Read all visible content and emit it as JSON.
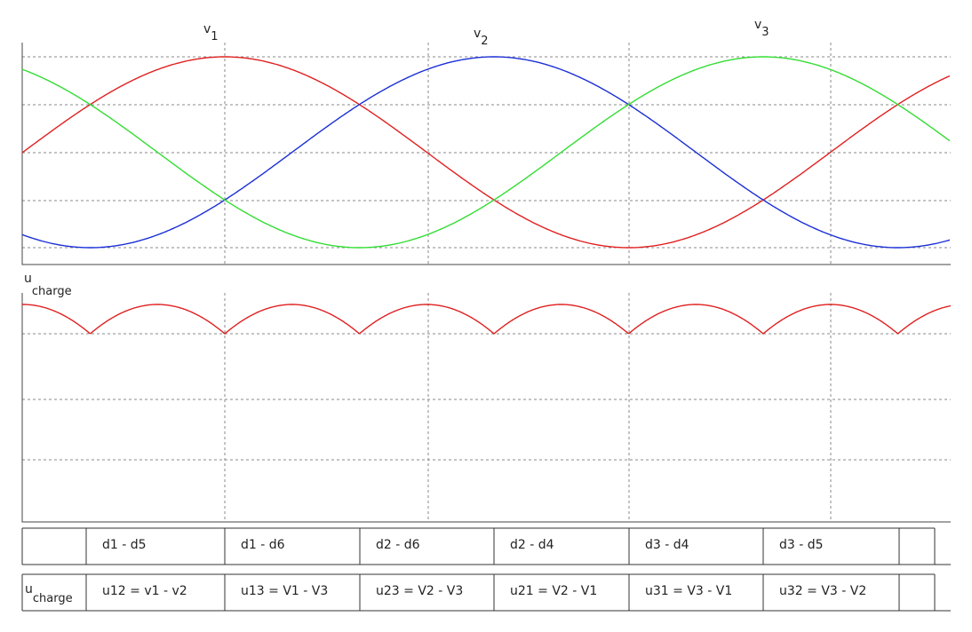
{
  "phase_labels": [
    {
      "symbol": "v",
      "index": "1"
    },
    {
      "symbol": "v",
      "index": "2"
    },
    {
      "symbol": "v",
      "index": "3"
    }
  ],
  "lower_plot_label": {
    "symbol": "u",
    "subscript": "charge"
  },
  "table": {
    "conduction": [
      "d1 - d5",
      "d1 - d6",
      "d2 - d6",
      "d2 - d4",
      "d3 - d4",
      "d3 - d5"
    ],
    "voltage_header": {
      "symbol": "u",
      "subscript": "charge"
    },
    "voltages": [
      "u12 = v1 - v2",
      "u13 = V1 - V3",
      "u23 = V2 - V3",
      "u21 = V2 - V1",
      "u31 = V3 - V1",
      "u32 = V3 - V2"
    ]
  }
}
